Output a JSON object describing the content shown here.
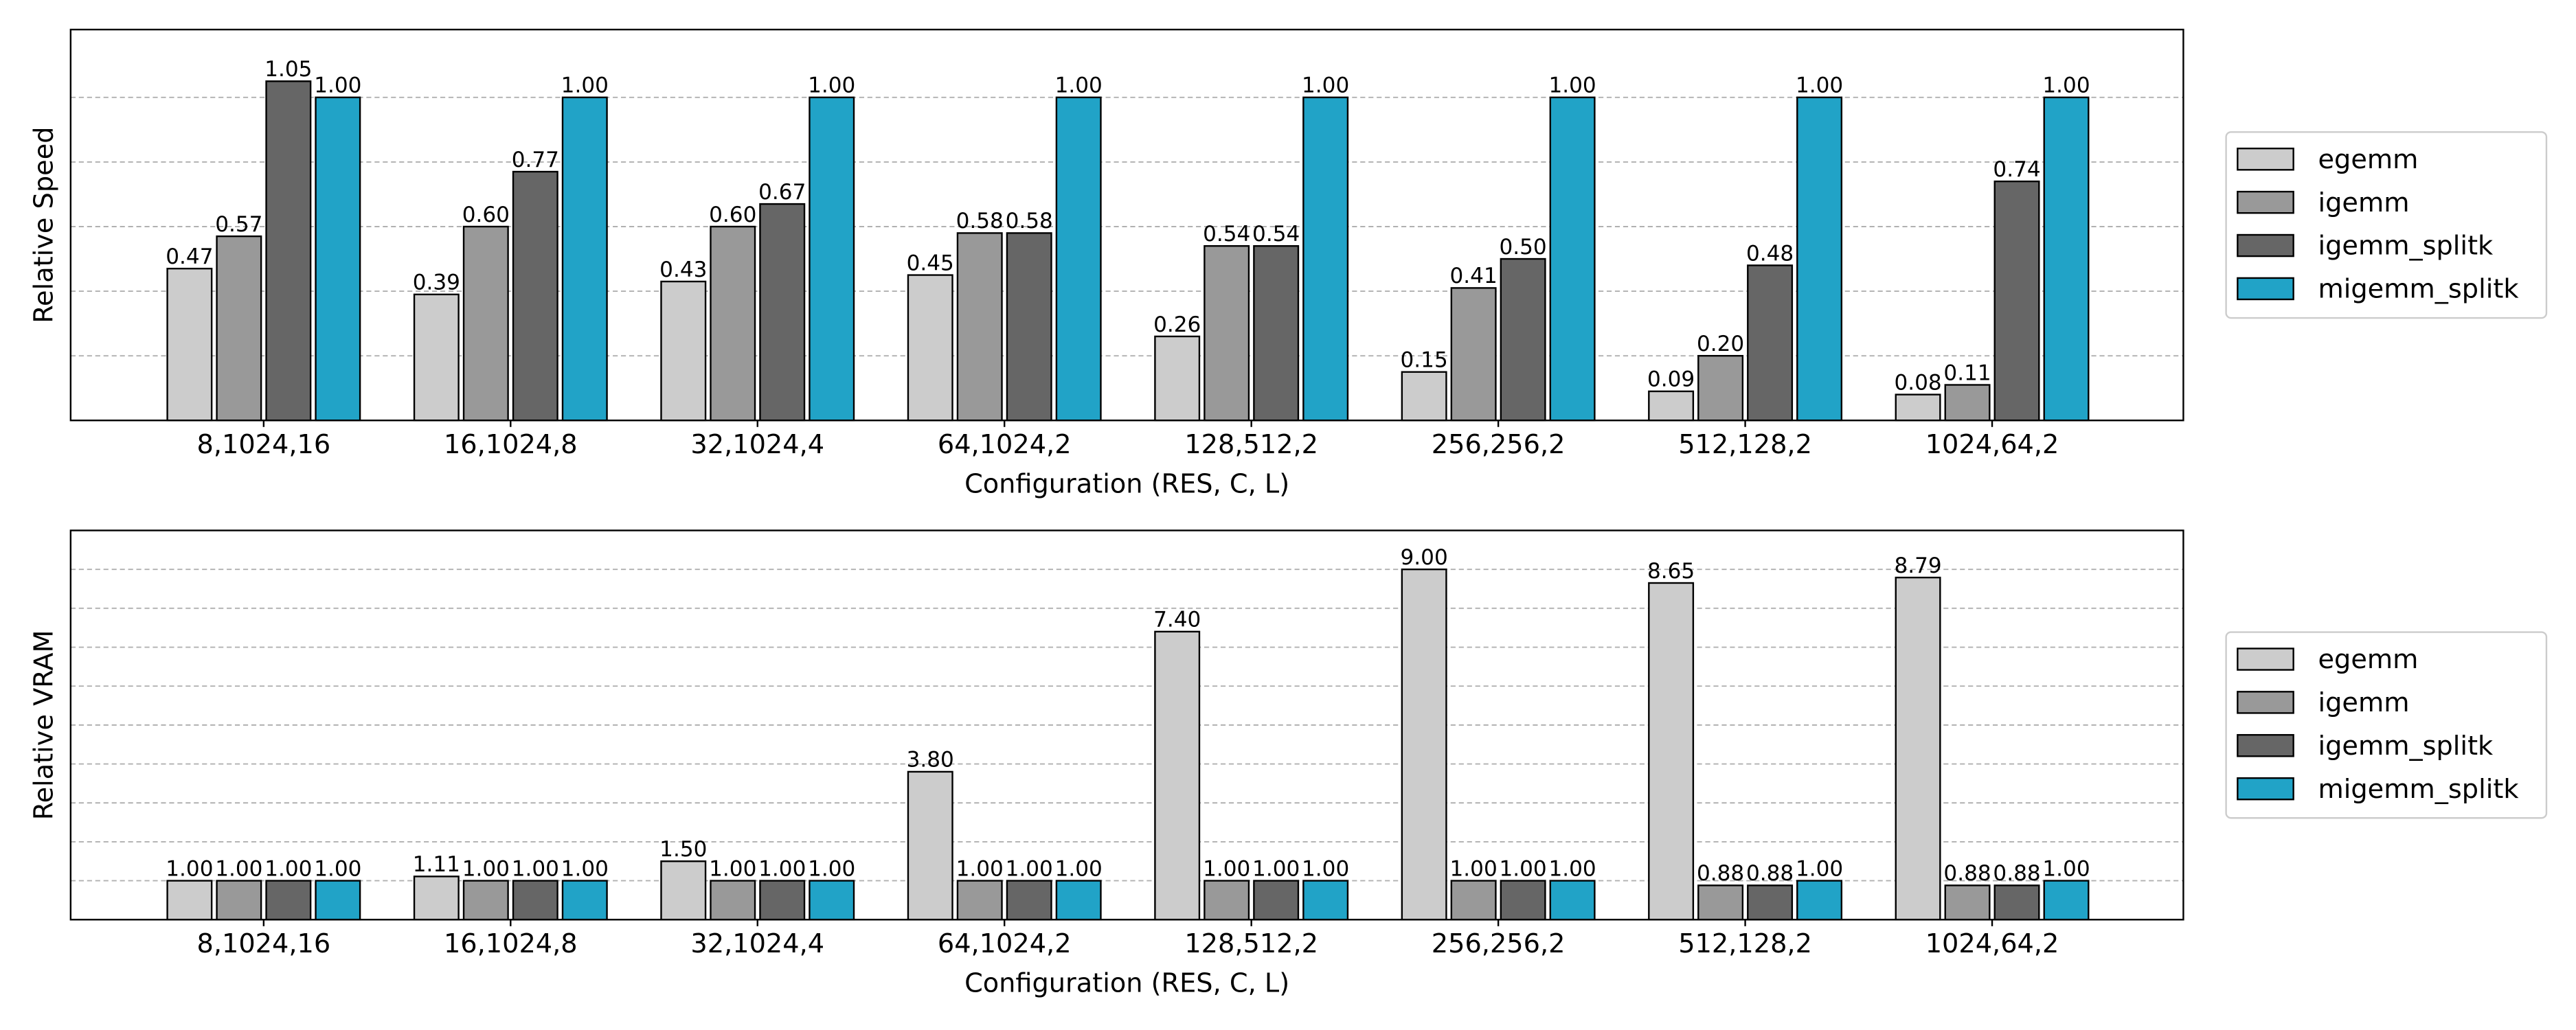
{
  "chart_data": [
    {
      "type": "bar",
      "ylabel": "Relative Speed",
      "xlabel": "Configuration (RES, C, L)",
      "categories": [
        "8,1024,16",
        "16,1024,8",
        "32,1024,4",
        "64,1024,2",
        "128,512,2",
        "256,256,2",
        "512,128,2",
        "1024,64,2"
      ],
      "series": [
        {
          "name": "egemm",
          "color": "#cccccc",
          "values": [
            0.47,
            0.39,
            0.43,
            0.45,
            0.26,
            0.15,
            0.09,
            0.08
          ],
          "value_labels": [
            "0.47",
            "0.39",
            "0.43",
            "0.45",
            "0.26",
            "0.15",
            "0.09",
            "0.08"
          ]
        },
        {
          "name": "igemm",
          "color": "#999999",
          "values": [
            0.57,
            0.6,
            0.6,
            0.58,
            0.54,
            0.41,
            0.2,
            0.11
          ],
          "value_labels": [
            "0.57",
            "0.60",
            "0.60",
            "0.58",
            "0.54",
            "0.41",
            "0.20",
            "0.11"
          ]
        },
        {
          "name": "igemm_splitk",
          "color": "#666666",
          "values": [
            1.05,
            0.77,
            0.67,
            0.58,
            0.54,
            0.5,
            0.48,
            0.74
          ],
          "value_labels": [
            "1.05",
            "0.77",
            "0.67",
            "0.58",
            "0.54",
            "0.50",
            "0.48",
            "0.74"
          ]
        },
        {
          "name": "migemm_splitk",
          "color": "#21a3c7",
          "values": [
            1,
            1,
            1,
            1,
            1,
            1,
            1,
            1
          ],
          "value_labels": [
            "1.00",
            "1.00",
            "1.00",
            "1.00",
            "1.00",
            "1.00",
            "1.00",
            "1.00"
          ]
        }
      ],
      "ylim": [
        0,
        1.21
      ],
      "yticks": [
        0.2,
        0.4,
        0.6,
        0.8,
        1
      ],
      "grid": true,
      "legend": "right"
    },
    {
      "type": "bar",
      "ylabel": "Relative VRAM",
      "xlabel": "Configuration (RES, C, L)",
      "categories": [
        "8,1024,16",
        "16,1024,8",
        "32,1024,4",
        "64,1024,2",
        "128,512,2",
        "256,256,2",
        "512,128,2",
        "1024,64,2"
      ],
      "series": [
        {
          "name": "egemm",
          "color": "#cccccc",
          "values": [
            1,
            1.11,
            1.5,
            3.8,
            7.4,
            9,
            8.65,
            8.79
          ],
          "value_labels": [
            "1.00",
            "1.11",
            "1.50",
            "3.80",
            "7.40",
            "9.00",
            "8.65",
            "8.79"
          ]
        },
        {
          "name": "igemm",
          "color": "#999999",
          "values": [
            1,
            1,
            1,
            1,
            1,
            1,
            0.88,
            0.88
          ],
          "value_labels": [
            "1.00",
            "1.00",
            "1.00",
            "1.00",
            "1.00",
            "1.00",
            "0.88",
            "0.88"
          ]
        },
        {
          "name": "igemm_splitk",
          "color": "#666666",
          "values": [
            1,
            1,
            1,
            1,
            1,
            1,
            0.88,
            0.88
          ],
          "value_labels": [
            "1.00",
            "1.00",
            "1.00",
            "1.00",
            "1.00",
            "1.00",
            "0.88",
            "0.88"
          ]
        },
        {
          "name": "migemm_splitk",
          "color": "#21a3c7",
          "values": [
            1,
            1,
            1,
            1,
            1,
            1,
            1,
            1
          ],
          "value_labels": [
            "1.00",
            "1.00",
            "1.00",
            "1.00",
            "1.00",
            "1.00",
            "1.00",
            "1.00"
          ]
        }
      ],
      "ylim": [
        0,
        10
      ],
      "yticks": [
        1,
        2,
        3,
        4,
        5,
        6,
        7,
        8,
        9
      ],
      "grid": true,
      "legend": "right"
    }
  ]
}
